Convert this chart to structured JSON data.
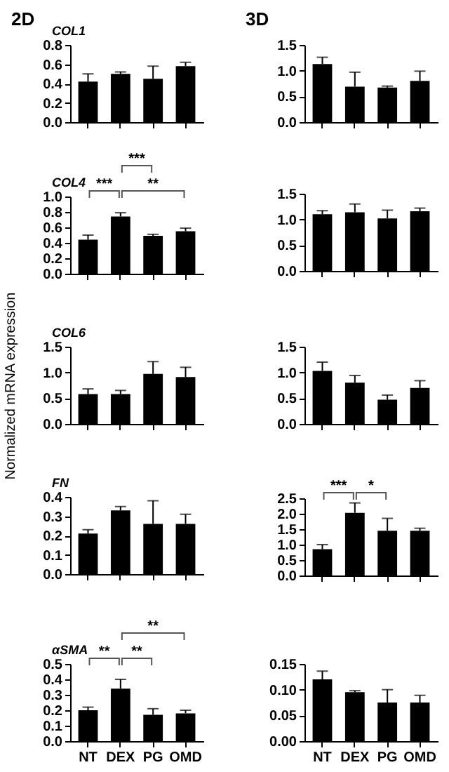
{
  "chart_data": [
    {
      "type": "bar",
      "title": "2D",
      "subtitle": "COL1",
      "categories": [
        null,
        null,
        null,
        null
      ],
      "values": [
        0.42,
        0.5,
        0.45,
        0.58
      ],
      "errors": [
        [
          0.42,
          0.5
        ],
        [
          0.5,
          0.52
        ],
        [
          0.45,
          0.58
        ],
        [
          0.58,
          0.62
        ]
      ],
      "color": "#000000",
      "ylim": [
        0,
        0.8
      ],
      "yticks": [
        {
          "value": 0,
          "label": "0.0"
        },
        0.2,
        0.4,
        0.6,
        0.8
      ],
      "tick_labels": "y"
    },
    {
      "type": "bar",
      "subtitle": "COL4",
      "categories": [
        null,
        null,
        null,
        null
      ],
      "values": [
        0.44,
        0.74,
        0.49,
        0.55
      ],
      "errors": [
        [
          0.44,
          0.5
        ],
        [
          0.74,
          0.79
        ],
        [
          0.49,
          0.51
        ],
        [
          0.55,
          0.59
        ]
      ],
      "color": "#000000",
      "ylim": [
        0,
        1
      ],
      "yticks": [
        {
          "value": 0,
          "label": "0.0"
        },
        0.2,
        0.4,
        0.6,
        0.8,
        {
          "value": 1,
          "label": "1.0"
        }
      ],
      "tick_labels": "y",
      "annotations": [
        "***",
        "***",
        "**"
      ]
    },
    {
      "type": "bar",
      "subtitle": "COL6",
      "ylabel": "Normalized mRNA expression",
      "categories": [
        null,
        null,
        null,
        null
      ],
      "values": [
        0.58,
        0.58,
        0.97,
        0.91
      ],
      "errors": [
        [
          0.58,
          0.68
        ],
        [
          0.58,
          0.65
        ],
        [
          0.97,
          1.21
        ],
        [
          0.91,
          1.1
        ]
      ],
      "color": "#000000",
      "ylim": [
        0,
        1.5
      ],
      "yticks": [
        {
          "value": 0,
          "label": "0.0"
        },
        0.5,
        {
          "value": 1,
          "label": "1.0"
        },
        1.5
      ],
      "tick_labels": "y"
    },
    {
      "type": "bar",
      "subtitle": "FN",
      "categories": [
        null,
        null,
        null,
        null
      ],
      "values": [
        0.21,
        0.33,
        0.26,
        0.26
      ],
      "errors": [
        [
          0.21,
          0.23
        ],
        [
          0.33,
          0.35
        ],
        [
          0.26,
          0.38
        ],
        [
          0.26,
          0.31
        ]
      ],
      "color": "#000000",
      "ylim": [
        0,
        0.4
      ],
      "yticks": [
        {
          "value": 0,
          "label": "0.0"
        },
        0.1,
        0.2,
        0.3,
        0.4
      ],
      "tick_labels": "y"
    },
    {
      "type": "bar",
      "subtitle": "αSMA",
      "categories": [
        "NT",
        "DEX",
        "PG",
        "OMD"
      ],
      "values": [
        0.2,
        0.34,
        0.17,
        0.18
      ],
      "errors": [
        [
          0.2,
          0.22
        ],
        [
          0.34,
          0.4
        ],
        [
          0.17,
          0.21
        ],
        [
          0.18,
          0.2
        ]
      ],
      "color": "#000000",
      "ylim": [
        0,
        0.5
      ],
      "yticks": [
        {
          "value": 0,
          "label": "0.0"
        },
        0.1,
        0.2,
        0.3,
        0.4,
        0.5
      ],
      "annotations": [
        "**",
        "**",
        "**"
      ]
    },
    {
      "type": "bar",
      "title": "3D",
      "categories": [
        null,
        null,
        null,
        null
      ],
      "values": [
        1.13,
        0.69,
        0.67,
        0.8
      ],
      "errors": [
        [
          1.13,
          1.26
        ],
        [
          0.69,
          0.97
        ],
        [
          0.67,
          0.7
        ],
        [
          0.8,
          0.99
        ]
      ],
      "color": "#000000",
      "ylim": [
        0,
        1.5
      ],
      "yticks": [
        {
          "value": 0,
          "label": "0.0"
        },
        0.5,
        {
          "value": 1,
          "label": "1.0"
        },
        1.5
      ],
      "tick_labels": "y"
    },
    {
      "type": "bar",
      "categories": [
        null,
        null,
        null,
        null
      ],
      "values": [
        1.1,
        1.14,
        1.02,
        1.16
      ],
      "errors": [
        [
          1.1,
          1.17
        ],
        [
          1.14,
          1.3
        ],
        [
          1.02,
          1.18
        ],
        [
          1.16,
          1.22
        ]
      ],
      "color": "#000000",
      "ylim": [
        0,
        1.5
      ],
      "yticks": [
        {
          "value": 0,
          "label": "0.0"
        },
        0.5,
        {
          "value": 1,
          "label": "1.0"
        },
        1.5
      ],
      "tick_labels": "y"
    },
    {
      "type": "bar",
      "categories": [
        null,
        null,
        null,
        null
      ],
      "values": [
        1.03,
        0.8,
        0.47,
        0.7
      ],
      "errors": [
        [
          1.03,
          1.2
        ],
        [
          0.8,
          0.94
        ],
        [
          0.47,
          0.56
        ],
        [
          0.7,
          0.84
        ]
      ],
      "color": "#000000",
      "ylim": [
        0,
        1.5
      ],
      "yticks": [
        {
          "value": 0,
          "label": "0.0"
        },
        0.5,
        {
          "value": 1,
          "label": "1.0"
        },
        1.5
      ],
      "tick_labels": "y"
    },
    {
      "type": "bar",
      "categories": [
        null,
        null,
        null,
        null
      ],
      "values": [
        0.85,
        2.03,
        1.45,
        1.45
      ],
      "errors": [
        [
          0.85,
          1.0
        ],
        [
          2.03,
          2.35
        ],
        [
          1.45,
          1.85
        ],
        [
          1.45,
          1.53
        ]
      ],
      "color": "#000000",
      "ylim": [
        0,
        2.5
      ],
      "yticks": [
        {
          "value": 0,
          "label": "0.0"
        },
        0.5,
        {
          "value": 1,
          "label": "1.0"
        },
        1.5,
        {
          "value": 2,
          "label": "2.0"
        },
        2.5
      ],
      "tick_labels": "y",
      "annotations": [
        "***",
        "*"
      ]
    },
    {
      "type": "bar",
      "categories": [
        "NT",
        "DEX",
        "PG",
        "OMD"
      ],
      "values": [
        0.12,
        0.095,
        0.075,
        0.075
      ],
      "errors": [
        [
          0.12,
          0.136
        ],
        [
          0.095,
          0.098
        ],
        [
          0.075,
          0.1
        ],
        [
          0.075,
          0.089
        ]
      ],
      "color": "#000000",
      "ylim": [
        0,
        0.15
      ],
      "yticks": [
        {
          "value": 0,
          "label": "0.00"
        },
        {
          "value": 0.05,
          "label": "0.05"
        },
        {
          "value": 0.1,
          "label": "0.10"
        },
        0.15
      ]
    }
  ]
}
